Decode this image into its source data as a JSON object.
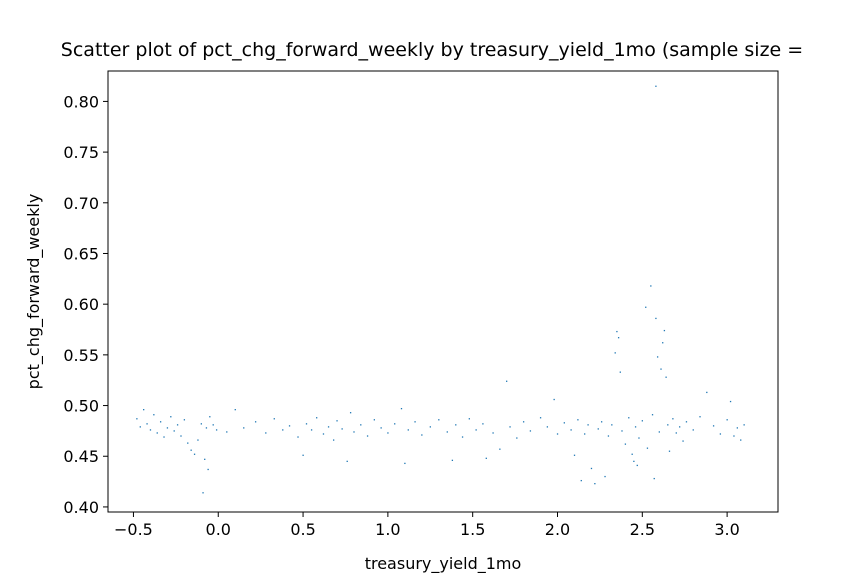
{
  "chart_data": {
    "type": "scatter",
    "title": "Scatter plot of pct_chg_forward_weekly by treasury_yield_1mo (sample size = ",
    "xlabel": "treasury_yield_1mo",
    "ylabel": "pct_chg_forward_weekly",
    "xlim": [
      -0.65,
      3.3
    ],
    "ylim": [
      0.395,
      0.83
    ],
    "xticks": [
      -0.5,
      0.0,
      0.5,
      1.0,
      1.5,
      2.0,
      2.5,
      3.0
    ],
    "xtick_labels": [
      "−0.5",
      "0.0",
      "0.5",
      "1.0",
      "1.5",
      "2.0",
      "2.5",
      "3.0"
    ],
    "yticks": [
      0.4,
      0.45,
      0.5,
      0.55,
      0.6,
      0.65,
      0.7,
      0.75,
      0.8
    ],
    "ytick_labels": [
      "0.40",
      "0.45",
      "0.50",
      "0.55",
      "0.60",
      "0.65",
      "0.70",
      "0.75",
      "0.80"
    ],
    "grid": false,
    "point_color": "#1f77b4",
    "series": [
      {
        "points": [
          [
            -0.48,
            0.487
          ],
          [
            -0.46,
            0.479
          ],
          [
            -0.44,
            0.496
          ],
          [
            -0.42,
            0.482
          ],
          [
            -0.4,
            0.476
          ],
          [
            -0.38,
            0.491
          ],
          [
            -0.36,
            0.473
          ],
          [
            -0.34,
            0.484
          ],
          [
            -0.32,
            0.469
          ],
          [
            -0.3,
            0.478
          ],
          [
            -0.28,
            0.489
          ],
          [
            -0.26,
            0.475
          ],
          [
            -0.24,
            0.481
          ],
          [
            -0.22,
            0.47
          ],
          [
            -0.2,
            0.486
          ],
          [
            -0.18,
            0.463
          ],
          [
            -0.16,
            0.456
          ],
          [
            -0.14,
            0.452
          ],
          [
            -0.12,
            0.466
          ],
          [
            -0.1,
            0.482
          ],
          [
            -0.09,
            0.414
          ],
          [
            -0.08,
            0.447
          ],
          [
            -0.07,
            0.478
          ],
          [
            -0.06,
            0.437
          ],
          [
            -0.05,
            0.489
          ],
          [
            -0.03,
            0.481
          ],
          [
            -0.01,
            0.476
          ],
          [
            0.05,
            0.474
          ],
          [
            0.1,
            0.496
          ],
          [
            0.15,
            0.478
          ],
          [
            0.22,
            0.484
          ],
          [
            0.28,
            0.473
          ],
          [
            0.33,
            0.487
          ],
          [
            0.38,
            0.476
          ],
          [
            0.42,
            0.48
          ],
          [
            0.47,
            0.469
          ],
          [
            0.5,
            0.451
          ],
          [
            0.52,
            0.482
          ],
          [
            0.55,
            0.476
          ],
          [
            0.58,
            0.488
          ],
          [
            0.62,
            0.472
          ],
          [
            0.65,
            0.479
          ],
          [
            0.68,
            0.466
          ],
          [
            0.7,
            0.485
          ],
          [
            0.73,
            0.477
          ],
          [
            0.76,
            0.445
          ],
          [
            0.78,
            0.493
          ],
          [
            0.8,
            0.474
          ],
          [
            0.84,
            0.481
          ],
          [
            0.88,
            0.47
          ],
          [
            0.92,
            0.486
          ],
          [
            0.96,
            0.478
          ],
          [
            1.0,
            0.473
          ],
          [
            1.04,
            0.482
          ],
          [
            1.08,
            0.497
          ],
          [
            1.1,
            0.443
          ],
          [
            1.12,
            0.476
          ],
          [
            1.16,
            0.484
          ],
          [
            1.2,
            0.471
          ],
          [
            1.25,
            0.479
          ],
          [
            1.3,
            0.486
          ],
          [
            1.35,
            0.474
          ],
          [
            1.38,
            0.446
          ],
          [
            1.4,
            0.481
          ],
          [
            1.44,
            0.469
          ],
          [
            1.48,
            0.487
          ],
          [
            1.52,
            0.476
          ],
          [
            1.56,
            0.482
          ],
          [
            1.58,
            0.448
          ],
          [
            1.62,
            0.473
          ],
          [
            1.66,
            0.457
          ],
          [
            1.7,
            0.524
          ],
          [
            1.72,
            0.479
          ],
          [
            1.76,
            0.468
          ],
          [
            1.8,
            0.484
          ],
          [
            1.84,
            0.475
          ],
          [
            1.9,
            0.488
          ],
          [
            1.94,
            0.479
          ],
          [
            1.98,
            0.506
          ],
          [
            2.0,
            0.472
          ],
          [
            2.04,
            0.483
          ],
          [
            2.08,
            0.476
          ],
          [
            2.1,
            0.451
          ],
          [
            2.12,
            0.486
          ],
          [
            2.14,
            0.426
          ],
          [
            2.16,
            0.472
          ],
          [
            2.18,
            0.481
          ],
          [
            2.2,
            0.438
          ],
          [
            2.22,
            0.423
          ],
          [
            2.24,
            0.477
          ],
          [
            2.26,
            0.484
          ],
          [
            2.28,
            0.43
          ],
          [
            2.3,
            0.47
          ],
          [
            2.32,
            0.481
          ],
          [
            2.34,
            0.552
          ],
          [
            2.35,
            0.573
          ],
          [
            2.36,
            0.567
          ],
          [
            2.37,
            0.533
          ],
          [
            2.38,
            0.475
          ],
          [
            2.4,
            0.462
          ],
          [
            2.42,
            0.488
          ],
          [
            2.44,
            0.452
          ],
          [
            2.45,
            0.445
          ],
          [
            2.46,
            0.479
          ],
          [
            2.47,
            0.441
          ],
          [
            2.48,
            0.468
          ],
          [
            2.5,
            0.485
          ],
          [
            2.52,
            0.597
          ],
          [
            2.53,
            0.458
          ],
          [
            2.55,
            0.618
          ],
          [
            2.56,
            0.491
          ],
          [
            2.57,
            0.428
          ],
          [
            2.58,
            0.586
          ],
          [
            2.58,
            0.815
          ],
          [
            2.59,
            0.548
          ],
          [
            2.6,
            0.474
          ],
          [
            2.61,
            0.536
          ],
          [
            2.62,
            0.562
          ],
          [
            2.63,
            0.574
          ],
          [
            2.64,
            0.528
          ],
          [
            2.65,
            0.481
          ],
          [
            2.66,
            0.455
          ],
          [
            2.68,
            0.487
          ],
          [
            2.7,
            0.473
          ],
          [
            2.72,
            0.479
          ],
          [
            2.74,
            0.465
          ],
          [
            2.76,
            0.484
          ],
          [
            2.8,
            0.476
          ],
          [
            2.84,
            0.489
          ],
          [
            2.88,
            0.513
          ],
          [
            2.92,
            0.48
          ],
          [
            2.96,
            0.472
          ],
          [
            3.0,
            0.486
          ],
          [
            3.02,
            0.504
          ],
          [
            3.04,
            0.47
          ],
          [
            3.06,
            0.478
          ],
          [
            3.08,
            0.466
          ],
          [
            3.1,
            0.481
          ]
        ]
      }
    ]
  }
}
